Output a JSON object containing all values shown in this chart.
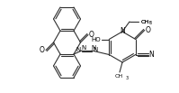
{
  "bg": "#ffffff",
  "lc": "#303030",
  "lw": 0.8,
  "tc": "#000000",
  "fig_w": 1.99,
  "fig_h": 1.03,
  "dpi": 100,
  "notes": "anthraquinone-azo-pyridinone structure"
}
